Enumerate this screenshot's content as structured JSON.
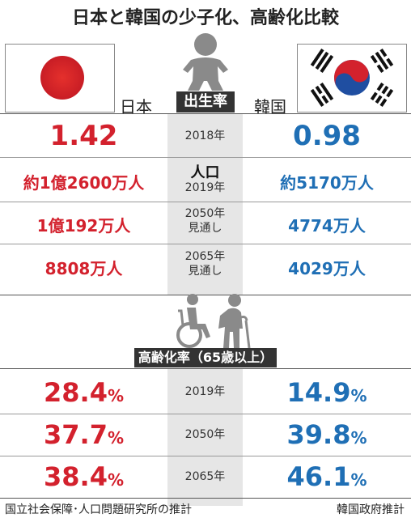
{
  "title": "日本と韓国の少子化、高齢化比較",
  "countries": {
    "japan": "日本",
    "korea": "韓国"
  },
  "icons": {
    "baby": "baby-icon",
    "elderly": "elderly-wheelchair-cane-icon",
    "jp_flag": "japan-flag-icon",
    "kr_flag": "korea-flag-icon"
  },
  "colors": {
    "japan": "#d3212d",
    "korea": "#1f6fb5",
    "center": "#e6e6e6",
    "dark": "#333333"
  },
  "birth_rate": {
    "heading": "出生率",
    "year_label": "2018年",
    "japan": "1.42",
    "korea": "0.98"
  },
  "population": {
    "rows": [
      {
        "label_main": "人口",
        "label_sub": "2019年",
        "japan": "約1億2600万人",
        "korea": "約5170万人"
      },
      {
        "label_main": "2050年",
        "label_sub": "見通し",
        "japan": "1億192万人",
        "korea": "4774万人"
      },
      {
        "label_main": "2065年",
        "label_sub": "見通し",
        "japan": "8808万人",
        "korea": "4029万人"
      }
    ]
  },
  "aging": {
    "heading": "高齢化率（65歳以上）",
    "unit": "%",
    "rows": [
      {
        "year": "2019年",
        "japan": "28.4",
        "korea": "14.9"
      },
      {
        "year": "2050年",
        "japan": "37.7",
        "korea": "39.8"
      },
      {
        "year": "2065年",
        "japan": "38.4",
        "korea": "46.1"
      }
    ]
  },
  "sources": {
    "left": "国立社会保障･人口問題研究所の推計",
    "right": "韓国政府推計"
  },
  "chart_data": {
    "type": "table",
    "title": "日本と韓国の少子化、高齢化比較",
    "columns": [
      "日本",
      "韓国"
    ],
    "birth_rate_2018": {
      "japan": 1.42,
      "korea": 0.98
    },
    "population": [
      {
        "year": "2019年",
        "japan": "約1億2600万人",
        "korea": "約5170万人"
      },
      {
        "year": "2050年見通し",
        "japan": "1億192万人",
        "korea": "4774万人"
      },
      {
        "year": "2065年見通し",
        "japan": "8808万人",
        "korea": "4029万人"
      }
    ],
    "aging_rate_65plus_percent": [
      {
        "year": "2019年",
        "japan": 28.4,
        "korea": 14.9
      },
      {
        "year": "2050年",
        "japan": 37.7,
        "korea": 39.8
      },
      {
        "year": "2065年",
        "japan": 38.4,
        "korea": 46.1
      }
    ]
  }
}
